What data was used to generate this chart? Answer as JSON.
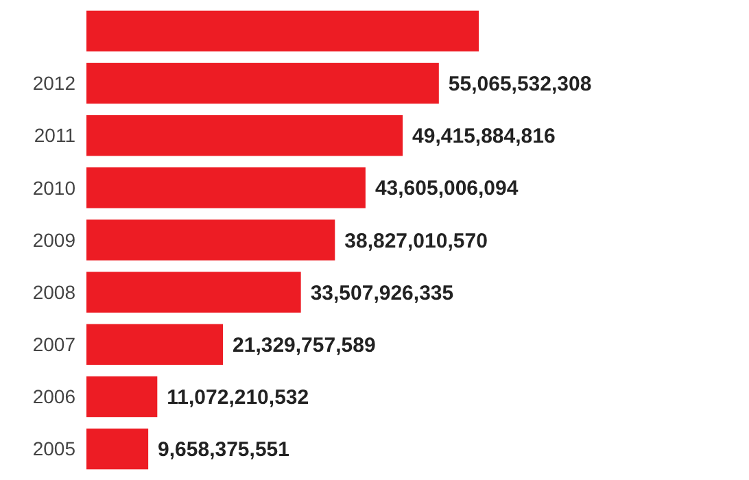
{
  "chart_data": {
    "type": "bar",
    "orientation": "horizontal",
    "categories": [
      null,
      "2012",
      "2011",
      "2010",
      "2009",
      "2008",
      "2007",
      "2006",
      "2005"
    ],
    "values": [
      61300000000,
      55065532308,
      49415884816,
      43605006094,
      38827010570,
      33507926335,
      21329757589,
      11072210532,
      9658375551
    ],
    "value_labels": [
      null,
      "55,065,532,308",
      "49,415,884,816",
      "43,605,006,094",
      "38,827,010,570",
      "33,507,926,335",
      "21,329,757,589",
      "11,072,210,532",
      "9,658,375,551"
    ],
    "color": "#ed1c24",
    "grid": false
  }
}
